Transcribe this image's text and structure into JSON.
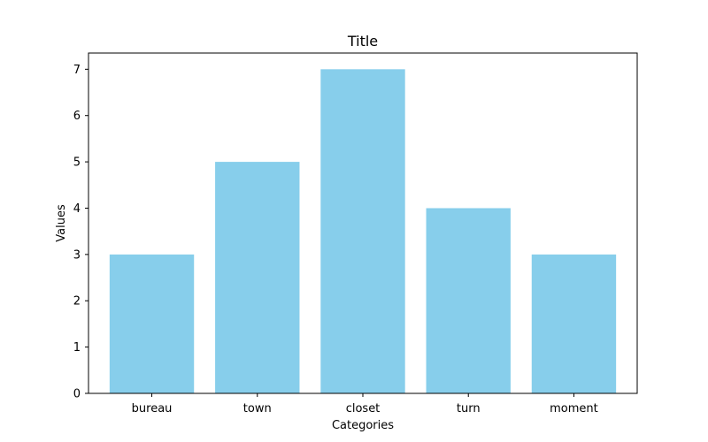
{
  "chart_data": {
    "type": "bar",
    "title": "Title",
    "xlabel": "Categories",
    "ylabel": "Values",
    "categories": [
      "bureau",
      "town",
      "closet",
      "turn",
      "moment"
    ],
    "values": [
      3,
      5,
      7,
      4,
      3
    ],
    "ylim": [
      0,
      7.35
    ],
    "yticks": [
      "0",
      "1",
      "2",
      "3",
      "4",
      "5",
      "6",
      "7"
    ],
    "bar_color": "#87ceeb",
    "grid": false,
    "legend": "none"
  }
}
